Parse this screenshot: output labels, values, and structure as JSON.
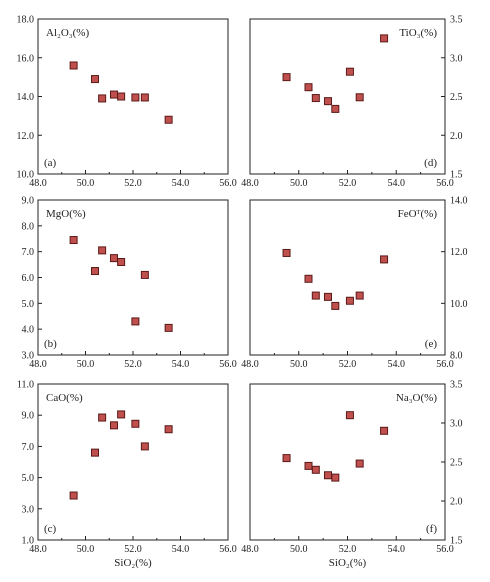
{
  "chart_data": [
    {
      "id": "a",
      "type": "scatter",
      "panel_label": "(a)",
      "title": "Al₂O₃(%)",
      "xlabel": "",
      "ylabel": "",
      "xlim": [
        48,
        56
      ],
      "ylim": [
        10,
        18
      ],
      "y_axis_side": "left",
      "xticks": [
        "48.0",
        "50.0",
        "52.0",
        "54.0",
        "56.0"
      ],
      "yticks": [
        "10.0",
        "12.0",
        "14.0",
        "16.0",
        "18.0"
      ],
      "x": [
        49.5,
        50.4,
        50.7,
        51.2,
        51.5,
        52.1,
        52.5,
        53.5
      ],
      "y": [
        15.6,
        14.9,
        13.9,
        14.1,
        14.0,
        13.95,
        13.95,
        12.8
      ]
    },
    {
      "id": "d",
      "type": "scatter",
      "panel_label": "(d)",
      "title": "TiO₃(%)",
      "xlabel": "",
      "ylabel": "",
      "xlim": [
        48,
        56
      ],
      "ylim": [
        1.5,
        3.5
      ],
      "y_axis_side": "right",
      "xticks": [
        "48.0",
        "50.0",
        "52.0",
        "54.0",
        "56.0"
      ],
      "yticks": [
        "1.5",
        "2.0",
        "2.5",
        "3.0",
        "3.5"
      ],
      "x": [
        49.5,
        50.4,
        50.7,
        51.2,
        51.5,
        52.1,
        52.5,
        53.5
      ],
      "y": [
        2.75,
        2.62,
        2.48,
        2.44,
        2.34,
        2.82,
        2.49,
        3.25
      ]
    },
    {
      "id": "b",
      "type": "scatter",
      "panel_label": "(b)",
      "title": "MgO(%)",
      "xlabel": "",
      "ylabel": "",
      "xlim": [
        48,
        56
      ],
      "ylim": [
        3,
        9
      ],
      "y_axis_side": "left",
      "xticks": [
        "48.0",
        "50.0",
        "52.0",
        "54.0",
        "56.0"
      ],
      "yticks": [
        "3.0",
        "4.0",
        "5.0",
        "6.0",
        "7.0",
        "8.0",
        "9.0"
      ],
      "x": [
        49.5,
        50.4,
        50.7,
        51.2,
        51.5,
        52.1,
        52.5,
        53.5
      ],
      "y": [
        7.45,
        6.25,
        7.05,
        6.75,
        6.6,
        4.3,
        6.1,
        4.05
      ]
    },
    {
      "id": "e",
      "type": "scatter",
      "panel_label": "(e)",
      "title": "FeOᵀ(%)",
      "xlabel": "",
      "ylabel": "",
      "xlim": [
        48,
        56
      ],
      "ylim": [
        8,
        14
      ],
      "y_axis_side": "right",
      "xticks": [
        "48.0",
        "50.0",
        "52.0",
        "54.0",
        "56.0"
      ],
      "yticks": [
        "8.0",
        "10.0",
        "12.0",
        "14.0"
      ],
      "x": [
        49.5,
        50.4,
        50.7,
        51.2,
        51.5,
        52.1,
        52.5,
        53.5
      ],
      "y": [
        11.95,
        10.95,
        10.3,
        10.25,
        9.9,
        10.1,
        10.3,
        11.7
      ]
    },
    {
      "id": "c",
      "type": "scatter",
      "panel_label": "(c)",
      "title": "CaO(%)",
      "xlabel": "SiO₂(%)",
      "ylabel": "",
      "xlim": [
        48,
        56
      ],
      "ylim": [
        1,
        11
      ],
      "y_axis_side": "left",
      "xticks": [
        "48.0",
        "50.0",
        "52.0",
        "54.0",
        "56.0"
      ],
      "yticks": [
        "1.0",
        "3.0",
        "5.0",
        "7.0",
        "9.0",
        "11.0"
      ],
      "x": [
        49.5,
        50.4,
        50.7,
        51.2,
        51.5,
        52.1,
        52.5,
        53.5
      ],
      "y": [
        3.85,
        6.6,
        8.85,
        8.35,
        9.05,
        8.45,
        7.0,
        8.1
      ]
    },
    {
      "id": "f",
      "type": "scatter",
      "panel_label": "(f)",
      "title": "Na₃O(%)",
      "xlabel": "SiO₂(%)",
      "ylabel": "",
      "xlim": [
        48,
        56
      ],
      "ylim": [
        1.5,
        3.5
      ],
      "y_axis_side": "right",
      "xticks": [
        "48.0",
        "50.0",
        "52.0",
        "54.0",
        "56.0"
      ],
      "yticks": [
        "1.5",
        "2.0",
        "2.5",
        "3.0",
        "3.5"
      ],
      "x": [
        49.5,
        50.4,
        50.7,
        51.2,
        51.5,
        52.1,
        52.5,
        53.5
      ],
      "y": [
        2.55,
        2.45,
        2.4,
        2.33,
        2.3,
        3.1,
        2.48,
        2.9
      ]
    }
  ],
  "colors": {
    "marker_fill": "#c0504d",
    "marker_stroke": "#5a1a18",
    "axis": "#222222"
  }
}
